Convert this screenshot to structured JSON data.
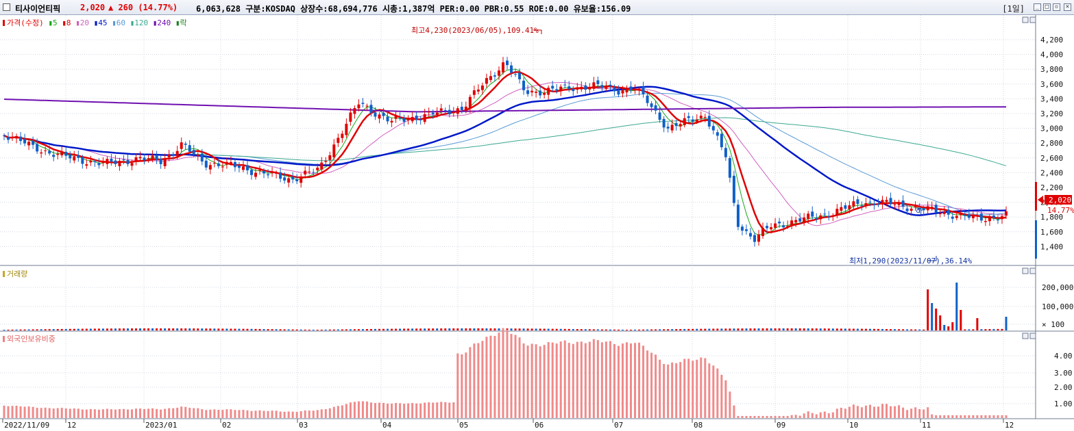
{
  "header": {
    "stock_name": "티사이언티픽",
    "price": "2,020",
    "change": "▲ 260 (14.77%)",
    "info": "6,063,628 구분:KOSDAQ 상장수:68,694,776 시총:1,387억 PER:0.00 PBR:0.55 ROE:0.00 유보율:156.09",
    "period": "[1일]"
  },
  "price_panel": {
    "legend": [
      {
        "text": "가격(수정)",
        "color": "#e00000"
      },
      {
        "text": "5",
        "color": "#18a818"
      },
      {
        "text": "8",
        "color": "#e00000"
      },
      {
        "text": "20",
        "color": "#d060c0"
      },
      {
        "text": "45",
        "color": "#0018c8"
      },
      {
        "text": "60",
        "color": "#5a9ad6"
      },
      {
        "text": "120",
        "color": "#3aa890"
      },
      {
        "text": "240",
        "color": "#7010b0"
      },
      {
        "text": "락",
        "color": "#208020"
      }
    ],
    "y_ticks": [
      "4,200",
      "4,000",
      "3,800",
      "3,600",
      "3,400",
      "3,200",
      "3,000",
      "2,800",
      "2,600",
      "2,400",
      "2,200",
      "2,000",
      "1,800",
      "1,600",
      "1,400"
    ],
    "high_label": "최고4,230(2023/06/05),109.41%",
    "low_label": "최저1,290(2023/11/07),36.14%",
    "current_tag": "2,020",
    "current_pct": "14.77%",
    "marker_label": "하"
  },
  "volume_panel": {
    "title": "거래량",
    "y_ticks": [
      "200,000",
      "100,000",
      "× 100"
    ]
  },
  "foreign_panel": {
    "title": "외국인보유비중",
    "y_ticks": [
      "4.00",
      "3.00",
      "2.00",
      "1.00"
    ]
  },
  "x_axis": {
    "labels": [
      "2022/11/09",
      "12",
      "2023/01",
      "02",
      "03",
      "04",
      "05",
      "06",
      "07",
      "08",
      "09",
      "10",
      "11",
      "12"
    ]
  },
  "colors": {
    "up": "#e00000",
    "down": "#1060c8",
    "grid": "#c8ccd6",
    "bg": "#ffffff"
  }
}
